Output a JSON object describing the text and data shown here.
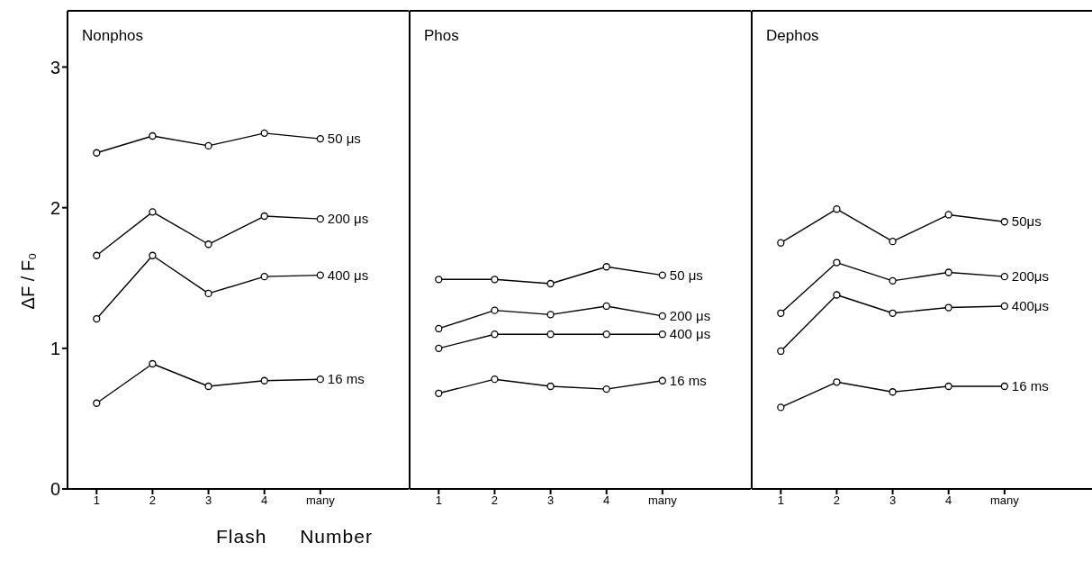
{
  "chart_data": [
    {
      "type": "line",
      "title": "Nonphos",
      "ylabel": "ΔF / F₀",
      "xlabel": "Flash Number",
      "categories": [
        "1",
        "2",
        "3",
        "4",
        "many"
      ],
      "ylim": [
        0,
        3.4
      ],
      "yticks": [
        0,
        1,
        2,
        3
      ],
      "marker": "circle",
      "legend": false,
      "grid": false,
      "series": [
        {
          "name": "50 μs",
          "color": "#000000",
          "values": [
            2.39,
            2.51,
            2.44,
            2.53,
            2.49
          ]
        },
        {
          "name": "200 μs",
          "color": "#000000",
          "values": [
            1.66,
            1.97,
            1.74,
            1.94,
            1.92
          ]
        },
        {
          "name": "400 μs",
          "color": "#000000",
          "values": [
            1.21,
            1.66,
            1.39,
            1.51,
            1.52
          ]
        },
        {
          "name": "16 ms",
          "color": "#000000",
          "values": [
            0.61,
            0.89,
            0.73,
            0.77,
            0.78
          ]
        }
      ]
    },
    {
      "type": "line",
      "title": "Phos",
      "categories": [
        "1",
        "2",
        "3",
        "4",
        "many"
      ],
      "ylim": [
        0,
        3.4
      ],
      "yticks": [
        0,
        1,
        2,
        3
      ],
      "tick_labels": "x",
      "marker": "circle",
      "legend": false,
      "grid": false,
      "series": [
        {
          "name": "50 μs",
          "color": "#000000",
          "values": [
            1.49,
            1.49,
            1.46,
            1.58,
            1.52
          ]
        },
        {
          "name": "200 μs",
          "color": "#000000",
          "values": [
            1.14,
            1.27,
            1.24,
            1.3,
            1.23
          ]
        },
        {
          "name": "400 μs",
          "color": "#000000",
          "values": [
            1.0,
            1.1,
            1.1,
            1.1,
            1.1
          ]
        },
        {
          "name": "16 ms",
          "color": "#000000",
          "values": [
            0.68,
            0.78,
            0.73,
            0.71,
            0.77
          ]
        }
      ]
    },
    {
      "type": "line",
      "title": "Dephos",
      "categories": [
        "1",
        "2",
        "3",
        "4",
        "many"
      ],
      "ylim": [
        0,
        3.4
      ],
      "yticks": [
        0,
        1,
        2,
        3
      ],
      "tick_labels": "x",
      "marker": "circle",
      "legend": false,
      "grid": false,
      "series": [
        {
          "name": "50μs",
          "color": "#000000",
          "values": [
            1.75,
            1.99,
            1.76,
            1.95,
            1.9
          ]
        },
        {
          "name": "200μs",
          "color": "#000000",
          "values": [
            1.25,
            1.61,
            1.48,
            1.54,
            1.51
          ]
        },
        {
          "name": "400μs",
          "color": "#000000",
          "values": [
            0.98,
            1.38,
            1.25,
            1.29,
            1.3
          ]
        },
        {
          "name": "16 ms",
          "color": "#000000",
          "values": [
            0.58,
            0.76,
            0.69,
            0.73,
            0.73
          ]
        }
      ]
    }
  ]
}
